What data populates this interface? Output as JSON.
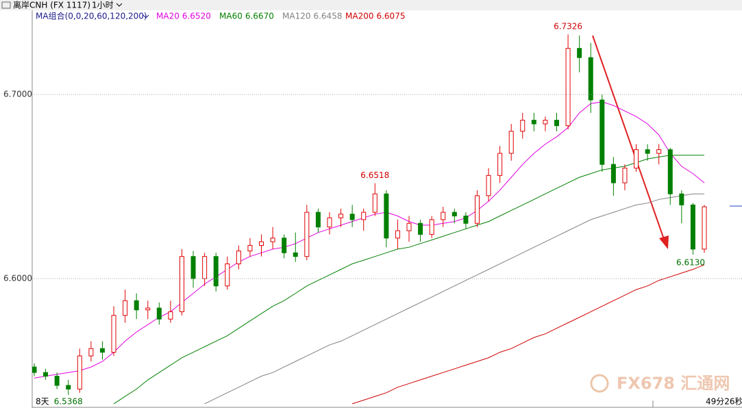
{
  "header": {
    "symbol": "离岸CNH (FX 1117)",
    "period": "1小时"
  },
  "chart_data": {
    "type": "candlestick",
    "legend_title": "MA组合(0,0,20,60,120,200)",
    "candles": {
      "open": [
        6.552,
        6.549,
        6.547,
        6.542,
        6.54,
        6.558,
        6.562,
        6.56,
        6.58,
        6.588,
        6.583,
        6.584,
        6.578,
        6.582,
        6.612,
        6.6,
        6.612,
        6.596,
        6.608,
        6.615,
        6.618,
        6.62,
        6.622,
        6.614,
        6.612,
        6.636,
        6.628,
        6.633,
        6.635,
        6.632,
        6.636,
        6.646,
        6.622,
        6.626,
        6.63,
        6.624,
        6.632,
        6.636,
        6.634,
        6.63,
        6.645,
        6.656,
        6.668,
        6.68,
        6.686,
        6.684,
        6.686,
        6.683,
        6.725,
        6.72,
        6.697,
        6.662,
        6.652,
        6.66,
        6.67,
        6.668,
        6.67,
        6.646,
        6.64,
        6.616
      ],
      "high": [
        6.554,
        6.551,
        6.549,
        6.545,
        6.562,
        6.566,
        6.566,
        6.585,
        6.594,
        6.592,
        6.588,
        6.587,
        6.588,
        6.616,
        6.615,
        6.614,
        6.614,
        6.612,
        6.618,
        6.622,
        6.624,
        6.628,
        6.624,
        6.625,
        6.64,
        6.638,
        6.636,
        6.638,
        6.64,
        6.638,
        6.6518,
        6.648,
        6.632,
        6.634,
        6.632,
        6.634,
        6.639,
        6.638,
        6.636,
        6.648,
        6.66,
        6.672,
        6.684,
        6.69,
        6.69,
        6.688,
        6.69,
        6.7326,
        6.732,
        6.728,
        6.7,
        6.666,
        6.662,
        6.673,
        6.673,
        6.673,
        6.671,
        6.648,
        6.641,
        6.64
      ],
      "low": [
        6.547,
        6.545,
        6.54,
        6.5368,
        6.538,
        6.555,
        6.556,
        6.558,
        6.576,
        6.578,
        6.578,
        6.575,
        6.576,
        6.58,
        6.595,
        6.596,
        6.593,
        6.594,
        6.605,
        6.612,
        6.612,
        6.616,
        6.611,
        6.609,
        6.61,
        6.625,
        6.624,
        6.628,
        6.628,
        6.626,
        6.634,
        6.617,
        6.616,
        6.62,
        6.62,
        6.622,
        6.628,
        6.63,
        6.627,
        6.628,
        6.642,
        6.652,
        6.664,
        6.676,
        6.68,
        6.68,
        6.68,
        6.681,
        6.712,
        6.69,
        6.658,
        6.645,
        6.648,
        6.658,
        6.664,
        6.662,
        6.64,
        6.63,
        6.613,
        6.614
      ],
      "close": [
        6.549,
        6.547,
        6.542,
        6.54,
        6.558,
        6.562,
        6.56,
        6.58,
        6.588,
        6.583,
        6.584,
        6.578,
        6.582,
        6.612,
        6.6,
        6.612,
        6.596,
        6.608,
        6.615,
        6.618,
        6.62,
        6.622,
        6.614,
        6.612,
        6.636,
        6.628,
        6.633,
        6.635,
        6.632,
        6.636,
        6.646,
        6.622,
        6.626,
        6.63,
        6.624,
        6.632,
        6.636,
        6.634,
        6.63,
        6.645,
        6.656,
        6.668,
        6.68,
        6.686,
        6.684,
        6.686,
        6.683,
        6.725,
        6.72,
        6.697,
        6.662,
        6.652,
        6.66,
        6.67,
        6.668,
        6.67,
        6.646,
        6.64,
        6.616,
        6.639
      ]
    },
    "up_color": "#e00000",
    "down_color": "#008000",
    "series": [
      {
        "name": "MA20",
        "value_label": "6.6520",
        "color": "#e000e0",
        "values": [
          6.546,
          6.547,
          6.548,
          6.549,
          6.55,
          6.552,
          6.555,
          6.56,
          6.566,
          6.571,
          6.575,
          6.579,
          6.582,
          6.587,
          6.592,
          6.597,
          6.601,
          6.605,
          6.609,
          6.612,
          6.614,
          6.616,
          6.617,
          6.619,
          6.622,
          6.625,
          6.627,
          6.629,
          6.631,
          6.633,
          6.635,
          6.636,
          6.634,
          6.631,
          6.629,
          6.629,
          6.63,
          6.631,
          6.633,
          6.637,
          6.642,
          6.648,
          6.655,
          6.662,
          6.668,
          6.673,
          6.677,
          6.682,
          6.69,
          6.695,
          6.696,
          6.694,
          6.691,
          6.688,
          6.684,
          6.678,
          6.668,
          6.661,
          6.657,
          6.652
        ]
      },
      {
        "name": "MA60",
        "value_label": "6.6670",
        "color": "#008000",
        "values": [
          null,
          null,
          null,
          null,
          null,
          null,
          null,
          6.532,
          6.536,
          6.54,
          6.545,
          6.549,
          6.553,
          6.557,
          6.56,
          6.563,
          6.566,
          6.569,
          6.573,
          6.577,
          6.581,
          6.585,
          6.588,
          6.592,
          6.596,
          6.599,
          6.602,
          6.605,
          6.608,
          6.61,
          6.612,
          6.614,
          6.616,
          6.617,
          6.619,
          6.621,
          6.623,
          6.625,
          6.627,
          6.629,
          6.631,
          6.634,
          6.637,
          6.64,
          6.643,
          6.646,
          6.649,
          6.652,
          6.655,
          6.657,
          6.659,
          6.66,
          6.661,
          6.663,
          6.665,
          6.666,
          6.667,
          6.667,
          6.667,
          6.667
        ]
      },
      {
        "name": "MA120",
        "value_label": "6.6458",
        "color": "#808080",
        "values": [
          null,
          null,
          null,
          null,
          null,
          null,
          null,
          null,
          null,
          null,
          null,
          null,
          null,
          null,
          null,
          6.532,
          6.535,
          6.538,
          6.541,
          6.544,
          6.547,
          6.549,
          6.552,
          6.555,
          6.558,
          6.561,
          6.564,
          6.566,
          6.569,
          6.572,
          6.575,
          6.578,
          6.581,
          6.584,
          6.587,
          6.59,
          6.593,
          6.596,
          6.599,
          6.602,
          6.605,
          6.608,
          6.611,
          6.614,
          6.617,
          6.62,
          6.623,
          6.626,
          6.629,
          6.632,
          6.634,
          6.636,
          6.638,
          6.64,
          6.641,
          6.643,
          6.644,
          6.645,
          6.646,
          6.646
        ]
      },
      {
        "name": "MA200",
        "value_label": "6.6075",
        "color": "#d00000",
        "values": [
          null,
          null,
          null,
          null,
          null,
          null,
          null,
          null,
          null,
          null,
          null,
          null,
          null,
          null,
          null,
          null,
          null,
          null,
          null,
          null,
          null,
          null,
          null,
          null,
          null,
          null,
          null,
          null,
          6.532,
          6.534,
          6.536,
          6.538,
          6.541,
          6.543,
          6.545,
          6.547,
          6.549,
          6.551,
          6.553,
          6.555,
          6.557,
          6.56,
          6.562,
          6.565,
          6.568,
          6.57,
          6.573,
          6.576,
          6.579,
          6.582,
          6.585,
          6.588,
          6.591,
          6.594,
          6.596,
          6.599,
          6.601,
          6.603,
          6.605,
          6.6075
        ]
      }
    ],
    "ylim": [
      6.5301,
      6.7457
    ],
    "yticks": [
      {
        "value": 6.6,
        "label": "6.6000"
      },
      {
        "value": 6.7,
        "label": "6.7000"
      }
    ],
    "grid": true,
    "annotations": [
      "6.7326",
      "6.6518",
      "6.6130",
      "6.5368"
    ],
    "x_start_label": "8天",
    "countdown": "49分26秒",
    "watermark": "FX678 汇通网"
  }
}
